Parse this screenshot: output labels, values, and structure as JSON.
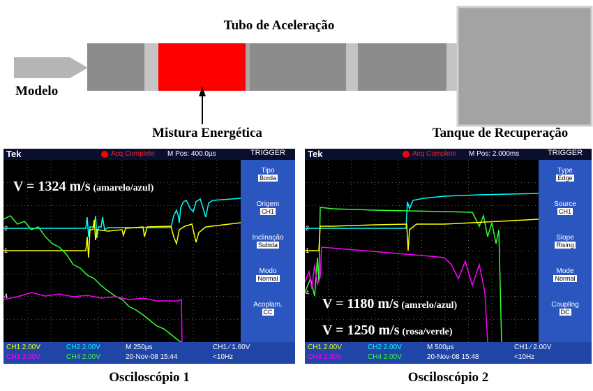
{
  "diagram": {
    "title": "Tubo de Aceleração",
    "model": "Modelo",
    "mixture": "Mistura Energética",
    "tank": "Tanque de Recuperação"
  },
  "scopes": [
    {
      "brand": "Tek",
      "status": "Acq Complete",
      "position": "M Pos: 400.0µs",
      "menu_title": "TRIGGER",
      "menu": [
        {
          "label": "Tipo",
          "value": "Borda"
        },
        {
          "label": "Origem",
          "value": "CH1"
        },
        {
          "label": "Inclinação",
          "value": "Subida"
        },
        {
          "label": "Modo",
          "value": "Normal"
        },
        {
          "label": "Acoplam.",
          "value": "CC"
        }
      ],
      "channel_markers": [
        "2",
        "1",
        "4"
      ],
      "annotations": [
        {
          "speed": "V = 1324 m/s",
          "channels": "(amarelo/azul)"
        }
      ],
      "status_bar": [
        [
          "CH1 2.00V",
          "CH2 2.00V",
          "M 250µs",
          "CH1 ∕ 1.60V"
        ],
        [
          "CH3 2.00V",
          "CH4 2.00V",
          "20-Nov-08 15:44",
          "<10Hz"
        ]
      ],
      "caption": "Osciloscópio 1"
    },
    {
      "brand": "Tek",
      "status": "Acq Complete",
      "position": "M Pos: 2.000ms",
      "menu_title": "TRIGGER",
      "menu": [
        {
          "label": "Type",
          "value": "Edge"
        },
        {
          "label": "Source",
          "value": "CH1"
        },
        {
          "label": "Slope",
          "value": "Rising"
        },
        {
          "label": "Mode",
          "value": "Normal"
        },
        {
          "label": "Coupling",
          "value": "DC"
        }
      ],
      "channel_markers": [
        "2",
        "1",
        "4"
      ],
      "annotations": [
        {
          "speed": "V = 1180 m/s",
          "channels": "(amrelo/azul)"
        },
        {
          "speed": "V = 1250 m/s",
          "channels": "(rosa/verde)"
        }
      ],
      "status_bar": [
        [
          "CH1 2.00V",
          "CH2 2.00V",
          "M 500µs",
          "CH1 ∕ 2.00V"
        ],
        [
          "CH3 2.00V",
          "CH4 2.00V",
          "20-Nov-08 15:48",
          "<10Hz"
        ]
      ],
      "caption": "Osciloscópio 2"
    }
  ]
}
